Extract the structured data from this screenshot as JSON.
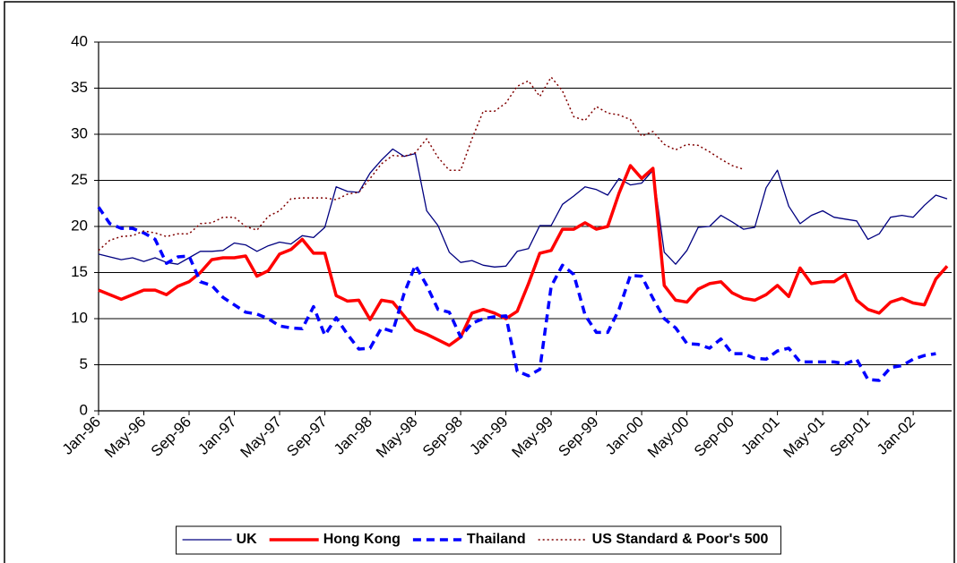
{
  "chart_data": {
    "type": "line",
    "categories": [
      "Jan-96",
      null,
      null,
      null,
      "May-96",
      null,
      null,
      null,
      "Sep-96",
      null,
      null,
      null,
      "Jan-97",
      null,
      null,
      null,
      "May-97",
      null,
      null,
      null,
      "Sep-97",
      null,
      null,
      null,
      "Jan-98",
      null,
      null,
      null,
      "May-98",
      null,
      null,
      null,
      "Sep-98",
      null,
      null,
      null,
      "Jan-99",
      null,
      null,
      null,
      "May-99",
      null,
      null,
      null,
      "Sep-99",
      null,
      null,
      null,
      "Jan-00",
      null,
      null,
      null,
      "May-00",
      null,
      null,
      null,
      "Sep-00",
      null,
      null,
      null,
      "Jan-01",
      null,
      null,
      null,
      "May-01",
      null,
      null,
      null,
      "Sep-01",
      null,
      null,
      null,
      "Jan-02",
      null,
      null,
      null
    ],
    "series": [
      {
        "name": "UK",
        "color": "#000080",
        "dash": "solid",
        "width": 1.3,
        "values": [
          17.0,
          16.7,
          16.4,
          16.6,
          16.2,
          16.6,
          16.1,
          15.9,
          16.6,
          17.3,
          17.3,
          17.4,
          18.2,
          18.0,
          17.3,
          17.9,
          18.3,
          18.1,
          19.0,
          18.8,
          19.9,
          24.3,
          23.8,
          23.7,
          25.8,
          27.2,
          28.4,
          27.6,
          27.9,
          21.7,
          20.1,
          17.2,
          16.1,
          16.3,
          15.8,
          15.6,
          15.7,
          17.3,
          17.6,
          20.1,
          20.1,
          22.4,
          23.3,
          24.3,
          24.0,
          23.4,
          25.2,
          24.5,
          24.7,
          26.1,
          17.2,
          15.9,
          17.4,
          19.9,
          20.0,
          21.2,
          20.5,
          19.7,
          19.9,
          24.2,
          26.1,
          22.2,
          20.3,
          21.2,
          21.7,
          21.0,
          20.8,
          20.6,
          18.6,
          19.2,
          21.0,
          21.2,
          21.0,
          22.3,
          23.4,
          23.0
        ]
      },
      {
        "name": "Hong Kong",
        "color": "#ff0000",
        "dash": "solid",
        "width": 3.5,
        "values": [
          13.1,
          12.6,
          12.1,
          12.6,
          13.1,
          13.1,
          12.6,
          13.5,
          14.0,
          15.0,
          16.4,
          16.6,
          16.6,
          16.8,
          14.6,
          15.2,
          17.0,
          17.5,
          18.6,
          17.1,
          17.1,
          12.5,
          11.9,
          12.0,
          9.9,
          12.0,
          11.8,
          10.3,
          8.8,
          8.3,
          7.7,
          7.1,
          8.0,
          10.6,
          11.0,
          10.6,
          10.0,
          10.8,
          13.8,
          17.1,
          17.4,
          19.7,
          19.7,
          20.4,
          19.7,
          20.0,
          23.6,
          26.6,
          25.2,
          26.3,
          13.6,
          12.0,
          11.8,
          13.2,
          13.8,
          14.0,
          12.8,
          12.2,
          12.0,
          12.6,
          13.6,
          12.4,
          15.5,
          13.8,
          14.0,
          14.0,
          14.8,
          12.0,
          11.0,
          10.6,
          11.8,
          12.2,
          11.7,
          11.5,
          14.3,
          15.7
        ]
      },
      {
        "name": "Thailand",
        "color": "#0000ff",
        "dash": "dash",
        "width": 3.5,
        "values": [
          22.1,
          20.3,
          19.8,
          19.8,
          19.3,
          18.6,
          16.0,
          16.7,
          16.8,
          14.0,
          13.6,
          12.3,
          11.5,
          10.7,
          10.5,
          10.0,
          9.2,
          9.0,
          8.9,
          11.3,
          8.2,
          10.1,
          8.3,
          6.7,
          6.8,
          9.0,
          8.6,
          12.7,
          15.8,
          13.6,
          11.0,
          10.7,
          8.0,
          9.5,
          10.0,
          10.2,
          10.3,
          4.3,
          3.8,
          4.5,
          13.5,
          15.8,
          14.8,
          10.4,
          8.5,
          8.5,
          11.0,
          14.7,
          14.6,
          12.2,
          10.0,
          9.0,
          7.3,
          7.2,
          6.8,
          7.8,
          6.2,
          6.2,
          5.7,
          5.6,
          6.5,
          6.8,
          5.3,
          5.3,
          5.3,
          5.3,
          5.1,
          5.6,
          3.4,
          3.3,
          4.7,
          4.9,
          5.6,
          6.0,
          6.2,
          null
        ]
      },
      {
        "name": "US Standard & Poor's 500",
        "color": "#800000",
        "dash": "dot",
        "width": 1.5,
        "values": [
          17.4,
          18.5,
          18.9,
          19.0,
          19.5,
          19.3,
          18.9,
          19.2,
          19.2,
          20.3,
          20.4,
          21.0,
          21.0,
          20.0,
          19.6,
          21.1,
          21.7,
          23.0,
          23.1,
          23.1,
          23.1,
          22.9,
          23.5,
          23.7,
          25.2,
          26.8,
          27.7,
          27.6,
          28.0,
          29.5,
          27.5,
          26.1,
          26.1,
          29.5,
          32.5,
          32.5,
          33.4,
          35.2,
          35.8,
          34.1,
          36.2,
          34.7,
          31.9,
          31.5,
          33.0,
          32.3,
          32.1,
          31.6,
          29.8,
          30.3,
          28.9,
          28.3,
          28.9,
          28.8,
          28.1,
          27.3,
          26.6,
          26.2,
          null,
          null,
          null,
          null,
          null,
          null,
          null,
          null,
          null,
          null,
          null,
          null,
          null,
          null,
          null,
          null,
          null,
          null
        ]
      }
    ],
    "ylim": [
      0,
      40
    ],
    "yticks": [
      0,
      5,
      10,
      15,
      20,
      25,
      30,
      35,
      40
    ],
    "grid": true,
    "legend": "bottom"
  }
}
